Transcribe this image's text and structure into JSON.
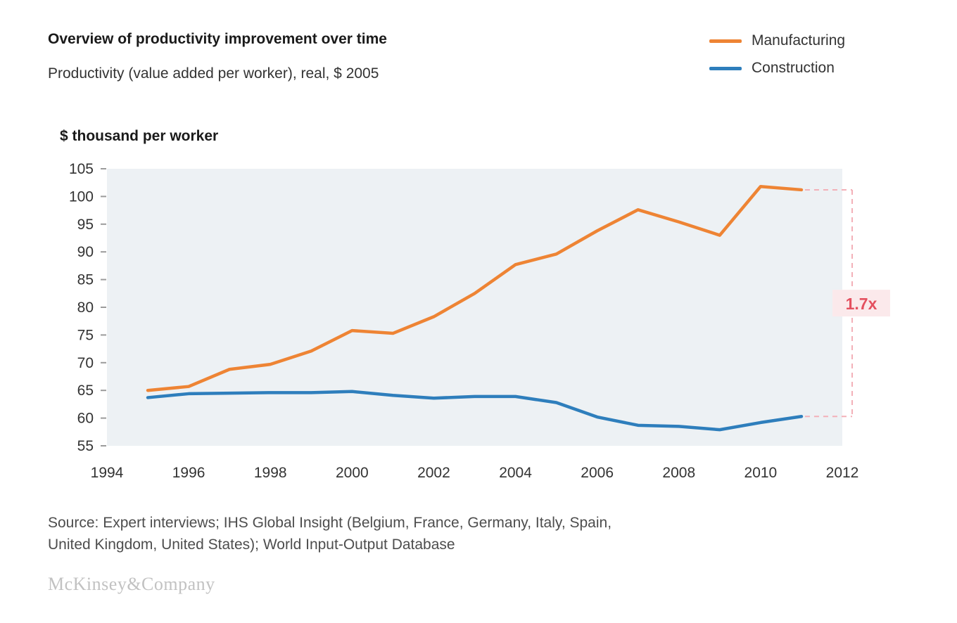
{
  "header": {
    "title": "Overview of productivity improvement over time",
    "subtitle": "Productivity (value added per worker), real, $ 2005"
  },
  "legend": [
    {
      "label": "Manufacturing",
      "color": "#EE8434"
    },
    {
      "label": "Construction",
      "color": "#2E7EBC"
    }
  ],
  "chart_data": {
    "type": "line",
    "title": "Overview of productivity improvement over time",
    "subtitle": "Productivity (value added per worker), real, $ 2005",
    "ylabel": "$ thousand per worker",
    "xlabel": "",
    "xlim": [
      1994,
      2012
    ],
    "ylim": [
      55,
      105
    ],
    "x_ticks": [
      1994,
      1996,
      1998,
      2000,
      2002,
      2004,
      2006,
      2008,
      2010,
      2012
    ],
    "y_ticks": [
      55,
      60,
      65,
      70,
      75,
      80,
      85,
      90,
      95,
      100,
      105
    ],
    "grid": false,
    "legend_position": "top-right",
    "plot_bg": "#EDF1F4",
    "x": [
      1995,
      1996,
      1997,
      1998,
      1999,
      2000,
      2001,
      2002,
      2003,
      2004,
      2005,
      2006,
      2007,
      2008,
      2009,
      2010,
      2011
    ],
    "series": [
      {
        "name": "Manufacturing",
        "color": "#EE8434",
        "values": [
          65.0,
          65.7,
          68.8,
          69.7,
          72.1,
          75.8,
          75.3,
          78.3,
          82.5,
          87.7,
          89.6,
          93.8,
          97.6,
          95.4,
          93.0,
          101.8,
          101.2
        ]
      },
      {
        "name": "Construction",
        "color": "#2E7EBC",
        "values": [
          63.7,
          64.4,
          64.5,
          64.6,
          64.6,
          64.8,
          64.1,
          63.6,
          63.9,
          63.9,
          62.8,
          60.2,
          58.7,
          58.5,
          57.9,
          59.2,
          60.3
        ]
      }
    ],
    "annotation": {
      "label": "1.7x",
      "color": "#E4505F",
      "bg": "#FBE9EB",
      "line_color": "#F3B0B8"
    }
  },
  "source": {
    "line1": "Source: Expert interviews; IHS Global Insight (Belgium, France, Germany, Italy, Spain,",
    "line2": "United Kingdom, United States); World Input-Output Database"
  },
  "footer": {
    "logo": "McKinsey&Company"
  }
}
